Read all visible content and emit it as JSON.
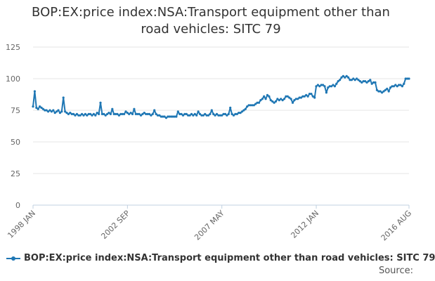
{
  "chart_data": {
    "type": "line",
    "title": "BOP:EX:price index:NSA:Transport equipment other than road vehicles: SITC 79",
    "xlabel": "",
    "ylabel": "",
    "ylim": [
      0,
      125
    ],
    "y_ticks": [
      0,
      25,
      50,
      75,
      100,
      125
    ],
    "x_ticks": [
      {
        "label": "1998 JAN",
        "year": 1998,
        "month": 1
      },
      {
        "label": "2002 SEP",
        "year": 2002,
        "month": 9
      },
      {
        "label": "2007 MAY",
        "year": 2007,
        "month": 5
      },
      {
        "label": "2012 JAN",
        "year": 2012,
        "month": 1
      },
      {
        "label": "2016 AUG",
        "year": 2016,
        "month": 8
      }
    ],
    "x_range": [
      "1998-01",
      "2016-08"
    ],
    "grid": "horizontal",
    "legend_position": "bottom",
    "series": [
      {
        "name": "BOP:EX:price index:NSA:Transport equipment other than road vehicles: SITC 79",
        "color": "#1f77b4",
        "marker": "circle",
        "points": [
          [
            "1998-01",
            78
          ],
          [
            "1998-02",
            90
          ],
          [
            "1998-03",
            77
          ],
          [
            "1998-04",
            76
          ],
          [
            "1998-05",
            78
          ],
          [
            "1998-06",
            77
          ],
          [
            "1998-07",
            76
          ],
          [
            "1998-08",
            75
          ],
          [
            "1998-09",
            75
          ],
          [
            "1998-10",
            74
          ],
          [
            "1998-11",
            75
          ],
          [
            "1998-12",
            74
          ],
          [
            "1999-01",
            75
          ],
          [
            "1999-02",
            73
          ],
          [
            "1999-03",
            74
          ],
          [
            "1999-04",
            75
          ],
          [
            "1999-05",
            73
          ],
          [
            "1999-06",
            74
          ],
          [
            "1999-07",
            85
          ],
          [
            "1999-08",
            74
          ],
          [
            "1999-09",
            73
          ],
          [
            "1999-10",
            72
          ],
          [
            "1999-11",
            73
          ],
          [
            "1999-12",
            72
          ],
          [
            "2000-01",
            72
          ],
          [
            "2000-02",
            71
          ],
          [
            "2000-03",
            72
          ],
          [
            "2000-04",
            71
          ],
          [
            "2000-05",
            71
          ],
          [
            "2000-06",
            72
          ],
          [
            "2000-07",
            71
          ],
          [
            "2000-08",
            72
          ],
          [
            "2000-09",
            71
          ],
          [
            "2000-10",
            72
          ],
          [
            "2000-11",
            72
          ],
          [
            "2000-12",
            71
          ],
          [
            "2001-01",
            72
          ],
          [
            "2001-02",
            71
          ],
          [
            "2001-03",
            73
          ],
          [
            "2001-04",
            72
          ],
          [
            "2001-05",
            81
          ],
          [
            "2001-06",
            72
          ],
          [
            "2001-07",
            72
          ],
          [
            "2001-08",
            71
          ],
          [
            "2001-09",
            72
          ],
          [
            "2001-10",
            73
          ],
          [
            "2001-11",
            72
          ],
          [
            "2001-12",
            76
          ],
          [
            "2002-01",
            72
          ],
          [
            "2002-02",
            72
          ],
          [
            "2002-03",
            72
          ],
          [
            "2002-04",
            71
          ],
          [
            "2002-05",
            72
          ],
          [
            "2002-06",
            72
          ],
          [
            "2002-07",
            72
          ],
          [
            "2002-08",
            74
          ],
          [
            "2002-09",
            73
          ],
          [
            "2002-10",
            72
          ],
          [
            "2002-11",
            73
          ],
          [
            "2002-12",
            72
          ],
          [
            "2003-01",
            76
          ],
          [
            "2003-02",
            72
          ],
          [
            "2003-03",
            72
          ],
          [
            "2003-04",
            72
          ],
          [
            "2003-05",
            71
          ],
          [
            "2003-06",
            72
          ],
          [
            "2003-07",
            73
          ],
          [
            "2003-08",
            72
          ],
          [
            "2003-09",
            72
          ],
          [
            "2003-10",
            72
          ],
          [
            "2003-11",
            71
          ],
          [
            "2003-12",
            72
          ],
          [
            "2004-01",
            75
          ],
          [
            "2004-02",
            72
          ],
          [
            "2004-03",
            71
          ],
          [
            "2004-04",
            71
          ],
          [
            "2004-05",
            70
          ],
          [
            "2004-06",
            70
          ],
          [
            "2004-07",
            70
          ],
          [
            "2004-08",
            69
          ],
          [
            "2004-09",
            70
          ],
          [
            "2004-10",
            70
          ],
          [
            "2004-11",
            70
          ],
          [
            "2004-12",
            70
          ],
          [
            "2005-01",
            70
          ],
          [
            "2005-02",
            70
          ],
          [
            "2005-03",
            74
          ],
          [
            "2005-04",
            72
          ],
          [
            "2005-05",
            72
          ],
          [
            "2005-06",
            71
          ],
          [
            "2005-07",
            72
          ],
          [
            "2005-08",
            72
          ],
          [
            "2005-09",
            71
          ],
          [
            "2005-10",
            71
          ],
          [
            "2005-11",
            72
          ],
          [
            "2005-12",
            71
          ],
          [
            "2006-01",
            72
          ],
          [
            "2006-02",
            71
          ],
          [
            "2006-03",
            74
          ],
          [
            "2006-04",
            72
          ],
          [
            "2006-05",
            71
          ],
          [
            "2006-06",
            71
          ],
          [
            "2006-07",
            72
          ],
          [
            "2006-08",
            71
          ],
          [
            "2006-09",
            71
          ],
          [
            "2006-10",
            72
          ],
          [
            "2006-11",
            75
          ],
          [
            "2006-12",
            72
          ],
          [
            "2007-01",
            71
          ],
          [
            "2007-02",
            72
          ],
          [
            "2007-03",
            71
          ],
          [
            "2007-04",
            71
          ],
          [
            "2007-05",
            71
          ],
          [
            "2007-06",
            72
          ],
          [
            "2007-07",
            72
          ],
          [
            "2007-08",
            71
          ],
          [
            "2007-09",
            72
          ],
          [
            "2007-10",
            77
          ],
          [
            "2007-11",
            72
          ],
          [
            "2007-12",
            71
          ],
          [
            "2008-01",
            72
          ],
          [
            "2008-02",
            72
          ],
          [
            "2008-03",
            73
          ],
          [
            "2008-04",
            73
          ],
          [
            "2008-05",
            74
          ],
          [
            "2008-06",
            75
          ],
          [
            "2008-07",
            76
          ],
          [
            "2008-08",
            78
          ],
          [
            "2008-09",
            79
          ],
          [
            "2008-10",
            79
          ],
          [
            "2008-11",
            79
          ],
          [
            "2008-12",
            79
          ],
          [
            "2009-01",
            80
          ],
          [
            "2009-02",
            81
          ],
          [
            "2009-03",
            81
          ],
          [
            "2009-04",
            83
          ],
          [
            "2009-05",
            84
          ],
          [
            "2009-06",
            86
          ],
          [
            "2009-07",
            84
          ],
          [
            "2009-08",
            87
          ],
          [
            "2009-09",
            86
          ],
          [
            "2009-10",
            83
          ],
          [
            "2009-11",
            82
          ],
          [
            "2009-12",
            81
          ],
          [
            "2010-01",
            82
          ],
          [
            "2010-02",
            84
          ],
          [
            "2010-03",
            83
          ],
          [
            "2010-04",
            84
          ],
          [
            "2010-05",
            83
          ],
          [
            "2010-06",
            84
          ],
          [
            "2010-07",
            86
          ],
          [
            "2010-08",
            86
          ],
          [
            "2010-09",
            85
          ],
          [
            "2010-10",
            84
          ],
          [
            "2010-11",
            81
          ],
          [
            "2010-12",
            83
          ],
          [
            "2011-01",
            84
          ],
          [
            "2011-02",
            84
          ],
          [
            "2011-03",
            85
          ],
          [
            "2011-04",
            85
          ],
          [
            "2011-05",
            86
          ],
          [
            "2011-06",
            86
          ],
          [
            "2011-07",
            87
          ],
          [
            "2011-08",
            86
          ],
          [
            "2011-09",
            88
          ],
          [
            "2011-10",
            88
          ],
          [
            "2011-11",
            86
          ],
          [
            "2011-12",
            85
          ],
          [
            "2012-01",
            94
          ],
          [
            "2012-02",
            95
          ],
          [
            "2012-03",
            94
          ],
          [
            "2012-04",
            95
          ],
          [
            "2012-05",
            95
          ],
          [
            "2012-06",
            94
          ],
          [
            "2012-07",
            89
          ],
          [
            "2012-08",
            93
          ],
          [
            "2012-09",
            94
          ],
          [
            "2012-10",
            94
          ],
          [
            "2012-11",
            95
          ],
          [
            "2012-12",
            94
          ],
          [
            "2013-01",
            96
          ],
          [
            "2013-02",
            98
          ],
          [
            "2013-03",
            99
          ],
          [
            "2013-04",
            101
          ],
          [
            "2013-05",
            102
          ],
          [
            "2013-06",
            101
          ],
          [
            "2013-07",
            102
          ],
          [
            "2013-08",
            101
          ],
          [
            "2013-09",
            99
          ],
          [
            "2013-10",
            99
          ],
          [
            "2013-11",
            100
          ],
          [
            "2013-12",
            99
          ],
          [
            "2014-01",
            100
          ],
          [
            "2014-02",
            99
          ],
          [
            "2014-03",
            98
          ],
          [
            "2014-04",
            97
          ],
          [
            "2014-05",
            98
          ],
          [
            "2014-06",
            98
          ],
          [
            "2014-07",
            97
          ],
          [
            "2014-08",
            98
          ],
          [
            "2014-09",
            99
          ],
          [
            "2014-10",
            96
          ],
          [
            "2014-11",
            97
          ],
          [
            "2014-12",
            97
          ],
          [
            "2015-01",
            91
          ],
          [
            "2015-02",
            90
          ],
          [
            "2015-03",
            90
          ],
          [
            "2015-04",
            89
          ],
          [
            "2015-05",
            90
          ],
          [
            "2015-06",
            91
          ],
          [
            "2015-07",
            92
          ],
          [
            "2015-08",
            90
          ],
          [
            "2015-09",
            93
          ],
          [
            "2015-10",
            94
          ],
          [
            "2015-11",
            94
          ],
          [
            "2015-12",
            95
          ],
          [
            "2016-01",
            94
          ],
          [
            "2016-02",
            95
          ],
          [
            "2016-03",
            95
          ],
          [
            "2016-04",
            94
          ],
          [
            "2016-05",
            96
          ],
          [
            "2016-06",
            100
          ],
          [
            "2016-07",
            100
          ],
          [
            "2016-08",
            100
          ]
        ]
      }
    ]
  },
  "footer": {
    "source_label": "Source:"
  }
}
